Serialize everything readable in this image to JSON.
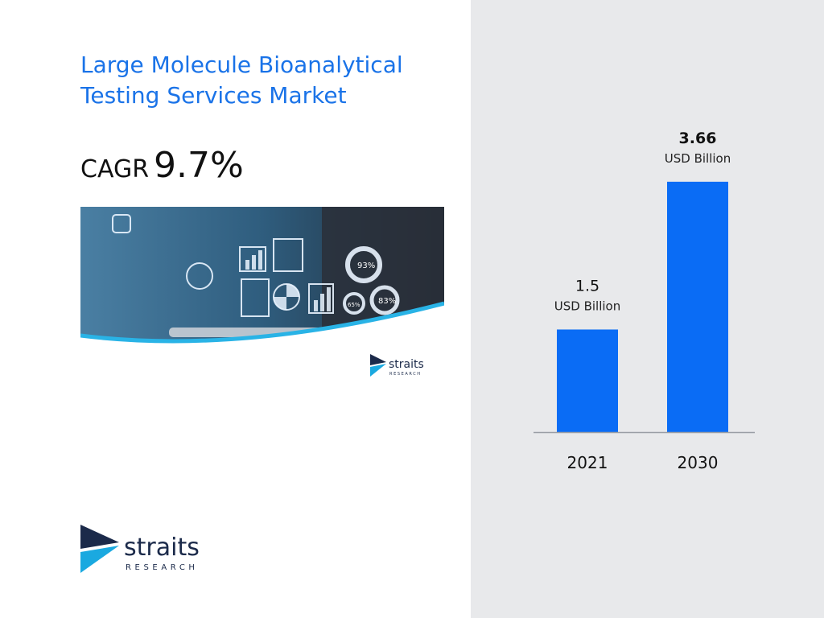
{
  "title": "Large Molecule Bioanalytical Testing Services Market",
  "cagr": {
    "label": "CAGR",
    "value": "9.7%"
  },
  "hero_image": {
    "labels": [
      "93%",
      "65%",
      "83%"
    ]
  },
  "brand": {
    "name": "straits",
    "sub": "RESEARCH"
  },
  "colors": {
    "bar": "#0a6cf5",
    "title": "#1a73e8",
    "panel": "#e8e9eb",
    "logo_dark": "#1b2a4a",
    "logo_cyan": "#1aa9e0"
  },
  "chart_data": {
    "type": "bar",
    "categories": [
      "2021",
      "2030"
    ],
    "values": [
      1.5,
      3.66
    ],
    "value_labels": [
      "1.5",
      "3.66"
    ],
    "unit_label": "USD Billion",
    "xlabel": "",
    "ylabel": "",
    "ylim": [
      0,
      4.07
    ],
    "grid": false
  }
}
